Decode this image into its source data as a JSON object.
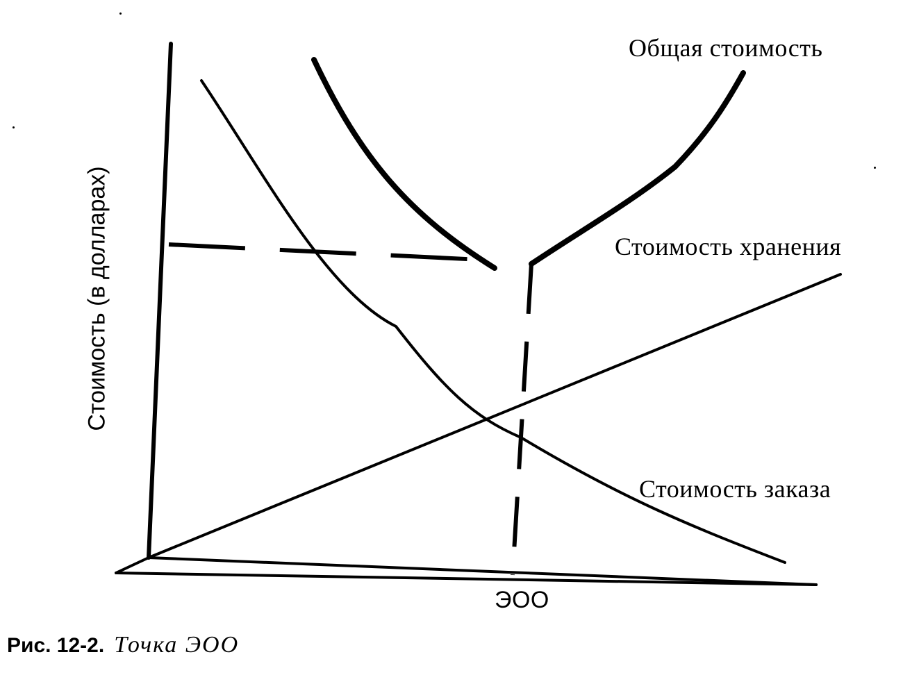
{
  "diagram": {
    "y_axis_label": "Стоимость (в долларах)",
    "x_marker_label": "ЭОО",
    "curves": {
      "total_cost": "Общая стоимость",
      "holding_cost": "Стоимость хранения",
      "ordering_cost": "Стоимость заказа"
    }
  },
  "caption": {
    "prefix": "Рис. 12-2.",
    "title": "Точка ЭОО"
  },
  "colors": {
    "ink": "#000000",
    "paper": "#ffffff"
  }
}
